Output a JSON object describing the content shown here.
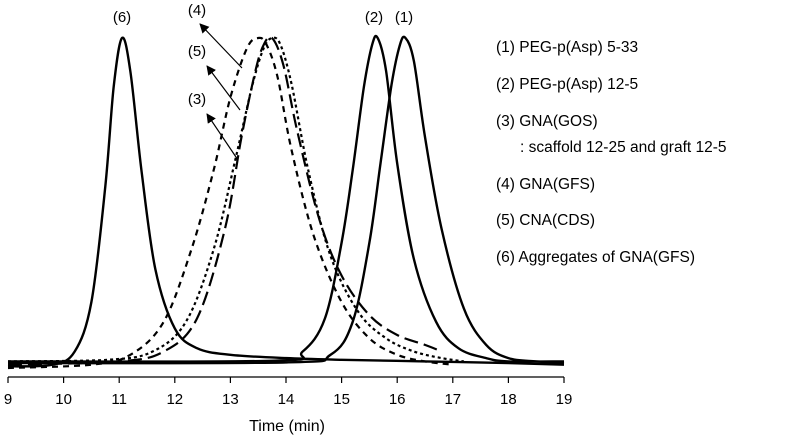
{
  "chart_data": {
    "type": "line",
    "xlabel": "Time (min)",
    "ylabel": "",
    "xlim": [
      9,
      19
    ],
    "xticks": [
      "9",
      "10",
      "11",
      "12",
      "13",
      "14",
      "15",
      "16",
      "17",
      "18",
      "19"
    ],
    "grid": false,
    "legend_placement": "right",
    "legend": [
      "(1) PEG-p(Asp) 5-33",
      "(2) PEG-p(Asp) 12-5",
      "(3) GNA(GOS)",
      ": scaffold 12-25 and graft 12-5",
      "(4) GNA(GFS)",
      "(5) CNA(CDS)",
      "(6) Aggregates of GNA(GFS)"
    ],
    "peak_labels": [
      "(6)",
      "(4)",
      "(5)",
      "(3)",
      "(2)",
      "(1)"
    ],
    "series": [
      {
        "name": "(1) PEG-p(Asp) 5-33",
        "style": "solid",
        "x": [
          9,
          14,
          14.8,
          15.2,
          15.5,
          15.7,
          15.9,
          16.05,
          16.15,
          16.3,
          16.5,
          16.8,
          17.2,
          17.6,
          18.0,
          18.5,
          19
        ],
        "y": [
          0.015,
          0.017,
          0.04,
          0.14,
          0.38,
          0.62,
          0.86,
          0.98,
          1.0,
          0.93,
          0.7,
          0.42,
          0.18,
          0.07,
          0.03,
          0.02,
          0.015
        ]
      },
      {
        "name": "(2) PEG-p(Asp) 12-5",
        "style": "solid",
        "x": [
          9,
          13.8,
          14.3,
          14.7,
          15.0,
          15.2,
          15.4,
          15.55,
          15.65,
          15.8,
          16.0,
          16.3,
          16.7,
          17.1,
          17.6,
          18.0,
          19
        ],
        "y": [
          0.02,
          0.022,
          0.05,
          0.15,
          0.38,
          0.6,
          0.85,
          0.98,
          1.0,
          0.9,
          0.62,
          0.33,
          0.14,
          0.06,
          0.03,
          0.02,
          0.02
        ]
      },
      {
        "name": "(3) GNA(GOS)",
        "style": "long-dash",
        "x": [
          9,
          11.0,
          11.8,
          12.4,
          12.9,
          13.2,
          13.45,
          13.6,
          13.75,
          13.95,
          14.2,
          14.6,
          15.0,
          15.5,
          16.0,
          16.5,
          16.8
        ],
        "y": [
          0.01,
          0.02,
          0.05,
          0.15,
          0.42,
          0.7,
          0.9,
          0.98,
          1.0,
          0.92,
          0.72,
          0.45,
          0.28,
          0.16,
          0.1,
          0.07,
          0.05
        ]
      },
      {
        "name": "(4) GNA(GFS)",
        "style": "short-dash",
        "x": [
          9,
          10.5,
          11.2,
          11.8,
          12.3,
          12.7,
          13.0,
          13.3,
          13.5,
          13.65,
          13.85,
          14.1,
          14.5,
          15.0,
          15.5,
          16.0,
          16.5,
          17.0
        ],
        "y": [
          0.0,
          0.01,
          0.04,
          0.14,
          0.36,
          0.6,
          0.82,
          0.97,
          1.0,
          0.98,
          0.88,
          0.66,
          0.4,
          0.2,
          0.09,
          0.04,
          0.02,
          0.01
        ]
      },
      {
        "name": "(5) CNA(CDS)",
        "style": "dotted",
        "x": [
          9,
          10.8,
          11.6,
          12.2,
          12.7,
          13.1,
          13.4,
          13.6,
          13.75,
          13.9,
          14.1,
          14.4,
          14.8,
          15.3,
          15.8,
          16.3,
          16.8,
          17.2
        ],
        "y": [
          0.02,
          0.025,
          0.05,
          0.14,
          0.36,
          0.64,
          0.86,
          0.97,
          1.0,
          0.98,
          0.86,
          0.6,
          0.34,
          0.17,
          0.09,
          0.05,
          0.03,
          0.02
        ]
      },
      {
        "name": "(6) Aggregates of GNA(GFS)",
        "style": "solid",
        "x": [
          9,
          9.8,
          10.2,
          10.5,
          10.75,
          10.9,
          11.05,
          11.2,
          11.4,
          11.65,
          12.0,
          12.4,
          13.0,
          14.0,
          15.0,
          16.5,
          18.0,
          19
        ],
        "y": [
          0.005,
          0.01,
          0.05,
          0.2,
          0.55,
          0.85,
          1.0,
          0.9,
          0.6,
          0.3,
          0.12,
          0.06,
          0.04,
          0.03,
          0.025,
          0.02,
          0.015,
          0.01
        ]
      }
    ]
  }
}
